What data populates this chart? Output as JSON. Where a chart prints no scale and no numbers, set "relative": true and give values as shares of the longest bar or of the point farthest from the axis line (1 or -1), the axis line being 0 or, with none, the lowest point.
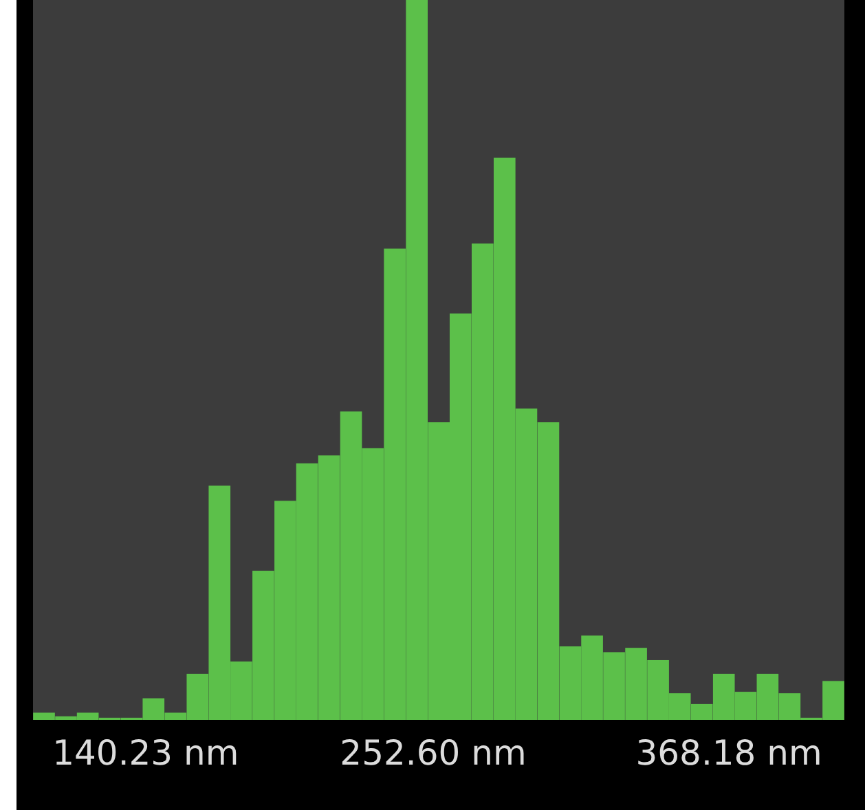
{
  "chart_data": {
    "type": "bar",
    "relative": true,
    "tick_labels": "x",
    "color": "#5cc04a",
    "x": [
      100.5,
      109.1,
      117.6,
      126.2,
      134.8,
      143.3,
      151.9,
      160.5,
      169.1,
      177.6,
      186.2,
      194.8,
      203.3,
      211.9,
      220.5,
      229.0,
      237.6,
      246.2,
      254.8,
      263.3,
      271.9,
      280.5,
      289.0,
      297.6,
      306.2,
      314.7,
      323.3,
      331.9,
      340.5,
      349.0,
      357.6,
      366.2,
      374.7,
      383.3,
      391.9,
      400.4,
      409.0
    ],
    "values": [
      0.011,
      0.006,
      0.011,
      0.004,
      0.004,
      0.031,
      0.011,
      0.065,
      0.326,
      0.082,
      0.208,
      0.305,
      0.357,
      0.368,
      0.429,
      0.378,
      0.655,
      1,
      0.414,
      0.565,
      0.662,
      0.781,
      0.433,
      0.414,
      0.103,
      0.118,
      0.095,
      0.101,
      0.084,
      0.038,
      0.023,
      0.065,
      0.04,
      0.065,
      0.038,
      0.004,
      0.055
    ],
    "xlim": [
      96.2,
      413.3
    ],
    "xticks": [
      {
        "value": 140.23,
        "label": "140.23 nm"
      },
      {
        "value": 252.6,
        "label": "252.60 nm"
      },
      {
        "value": 368.18,
        "label": "368.18 nm"
      }
    ]
  }
}
